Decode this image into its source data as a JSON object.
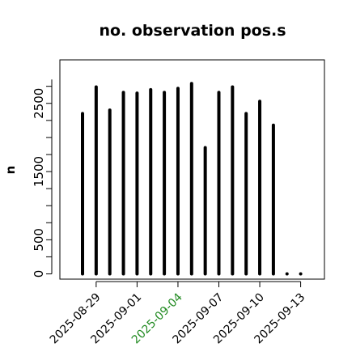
{
  "chart_data": {
    "type": "bar",
    "title": "no. observation pos.s",
    "ylabel": "n",
    "xlabel": "",
    "ylim": [
      0,
      2850
    ],
    "yticks": [
      0,
      500,
      1500,
      2500
    ],
    "x_tick_labels": [
      {
        "label": "2025-08-29",
        "color": "#000000"
      },
      {
        "label": "2025-09-01",
        "color": "#000000"
      },
      {
        "label": "2025-09-04",
        "color": "#228B22"
      },
      {
        "label": "2025-09-07",
        "color": "#000000"
      },
      {
        "label": "2025-09-10",
        "color": "#000000"
      },
      {
        "label": "2025-09-13",
        "color": "#000000"
      }
    ],
    "categories": [
      "2025-08-28",
      "2025-08-29",
      "2025-08-30",
      "2025-08-31",
      "2025-09-01",
      "2025-09-02",
      "2025-09-03",
      "2025-09-04",
      "2025-09-05",
      "2025-09-06",
      "2025-09-07",
      "2025-09-08",
      "2025-09-09",
      "2025-09-10",
      "2025-09-11",
      "2025-09-12",
      "2025-09-13"
    ],
    "values": [
      2350,
      2740,
      2400,
      2660,
      2650,
      2700,
      2660,
      2720,
      2790,
      1850,
      2660,
      2740,
      2350,
      2530,
      2180,
      0,
      0
    ],
    "grid": false,
    "bar_color": "#000000"
  }
}
